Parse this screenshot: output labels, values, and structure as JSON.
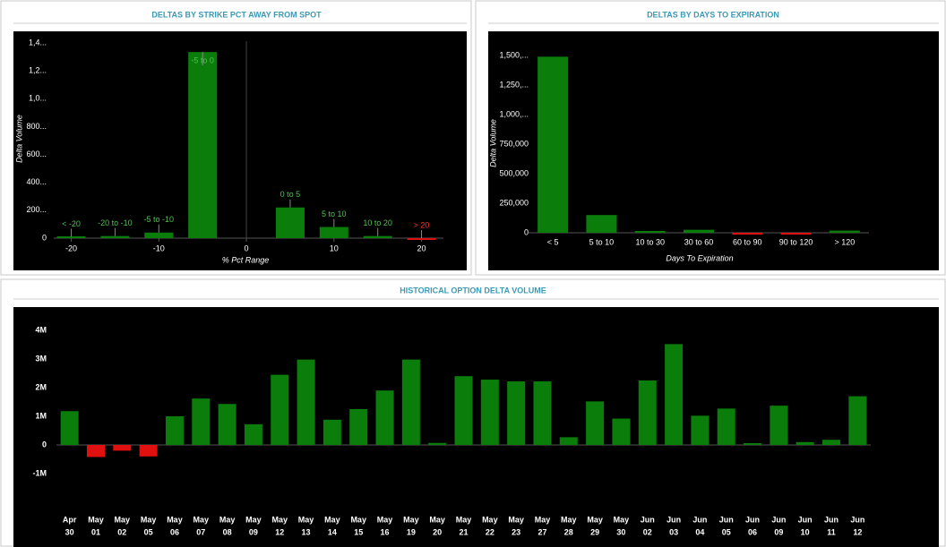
{
  "chart_data": [
    {
      "type": "bar",
      "title": "DELTAS BY STRIKE PCT AWAY FROM SPOT",
      "y_label": "Delta Volume",
      "x_label": "% Pct Range",
      "categories": [
        "< -20",
        "-20 to -10",
        "-5 to -10",
        "-5 to 0",
        "0 to 5",
        "5 to 10",
        "10 to 20",
        "> 20"
      ],
      "x": [
        -20,
        -15,
        -10,
        -5,
        5,
        10,
        15,
        20
      ],
      "values": [
        10000,
        15000,
        40000,
        1335000,
        220000,
        80000,
        15000,
        -3000
      ],
      "color": "#0a7d0a",
      "negative_color": "#e01010",
      "label_color": "#4fc24f",
      "negative_label_color": "#ff3030",
      "xlim": [
        -22,
        22.5
      ],
      "xticks": [
        -20,
        -10,
        0,
        10,
        20
      ],
      "spot_line": 0,
      "ylim": [
        0,
        1400000
      ],
      "yticks": [
        0,
        {
          "value": 200000,
          "label": "200..."
        },
        {
          "value": 400000,
          "label": "400..."
        },
        {
          "value": 600000,
          "label": "600..."
        },
        {
          "value": 800000,
          "label": "800..."
        },
        {
          "value": 1000000,
          "label": "1,0..."
        },
        {
          "value": 1200000,
          "label": "1,2..."
        },
        {
          "value": 1400000,
          "label": "1,4..."
        }
      ]
    },
    {
      "type": "bar",
      "title": "DELTAS BY DAYS TO EXPIRATION",
      "y_label": "Delta Volume",
      "x_label": "Days To Expiration",
      "categories": [
        "< 5",
        "5 to 10",
        "10 to 30",
        "30 to 60",
        "60 to 90",
        "90 to 120",
        "> 120"
      ],
      "values": [
        1490000,
        150000,
        15000,
        25000,
        -5000,
        -5000,
        18000
      ],
      "color": "#0a7d0a",
      "negative_color": "#e01010",
      "ylim": [
        0,
        1500000
      ],
      "yticks": [
        0,
        {
          "value": 250000,
          "label": "250,000"
        },
        {
          "value": 500000,
          "label": "500,000"
        },
        {
          "value": 750000,
          "label": "750,000"
        },
        {
          "value": 1000000,
          "label": "1,000,..."
        },
        {
          "value": 1250000,
          "label": "1,250,..."
        },
        {
          "value": 1500000,
          "label": "1,500,..."
        }
      ]
    },
    {
      "type": "bar",
      "title": "HISTORICAL OPTION DELTA VOLUME",
      "categories": [
        [
          "Apr",
          "30"
        ],
        [
          "May",
          "01"
        ],
        [
          "May",
          "02"
        ],
        [
          "May",
          "05"
        ],
        [
          "May",
          "06"
        ],
        [
          "May",
          "07"
        ],
        [
          "May",
          "08"
        ],
        [
          "May",
          "09"
        ],
        [
          "May",
          "12"
        ],
        [
          "May",
          "13"
        ],
        [
          "May",
          "14"
        ],
        [
          "May",
          "15"
        ],
        [
          "May",
          "16"
        ],
        [
          "May",
          "19"
        ],
        [
          "May",
          "20"
        ],
        [
          "May",
          "21"
        ],
        [
          "May",
          "22"
        ],
        [
          "May",
          "23"
        ],
        [
          "May",
          "27"
        ],
        [
          "May",
          "28"
        ],
        [
          "May",
          "29"
        ],
        [
          "May",
          "30"
        ],
        [
          "Jun",
          "02"
        ],
        [
          "Jun",
          "03"
        ],
        [
          "Jun",
          "04"
        ],
        [
          "Jun",
          "05"
        ],
        [
          "Jun",
          "06"
        ],
        [
          "Jun",
          "09"
        ],
        [
          "Jun",
          "10"
        ],
        [
          "Jun",
          "11"
        ],
        [
          "Jun",
          "12"
        ]
      ],
      "values": [
        1180000,
        -420000,
        -200000,
        -400000,
        1000000,
        1620000,
        1430000,
        720000,
        2450000,
        2980000,
        880000,
        1250000,
        1900000,
        2980000,
        70000,
        2400000,
        2280000,
        2220000,
        2220000,
        270000,
        1520000,
        920000,
        2250000,
        3520000,
        1020000,
        1270000,
        30000,
        1370000,
        100000,
        180000,
        1700000
      ],
      "color": "#0a7d0a",
      "negative_color": "#e01010",
      "ylim": [
        -1000000,
        4000000
      ],
      "yticks": [
        {
          "value": -1000000,
          "label": "-1M"
        },
        0,
        {
          "value": 1000000,
          "label": "1M"
        },
        {
          "value": 2000000,
          "label": "2M"
        },
        {
          "value": 3000000,
          "label": "3M"
        },
        {
          "value": 4000000,
          "label": "4M"
        }
      ]
    }
  ]
}
